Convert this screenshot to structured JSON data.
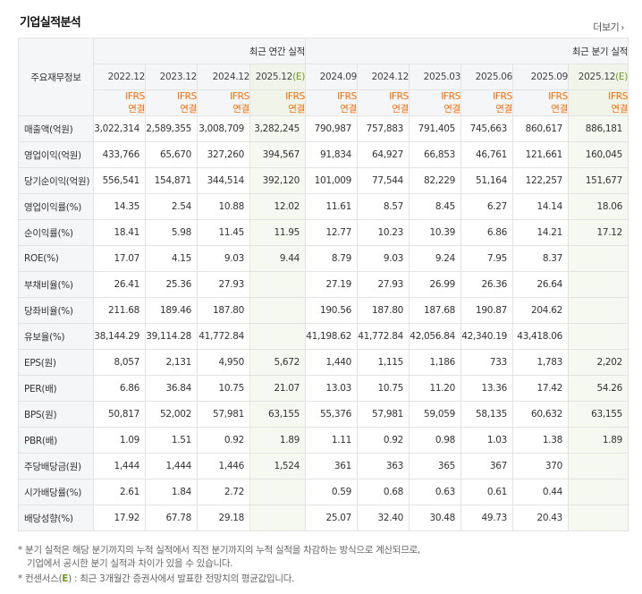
{
  "title": "기업실적분석",
  "more_label": "더보기",
  "header": {
    "label": "주요재무정보",
    "annual": "최근 연간 실적",
    "quarter": "최근 분기 실적",
    "periods": [
      {
        "text": "2022.12",
        "est": false
      },
      {
        "text": "2023.12",
        "est": false
      },
      {
        "text": "2024.12",
        "est": false
      },
      {
        "text": "2025.12(E)",
        "est": true
      },
      {
        "text": "2024.09",
        "est": false
      },
      {
        "text": "2024.12",
        "est": false
      },
      {
        "text": "2025.03",
        "est": false
      },
      {
        "text": "2025.06",
        "est": false
      },
      {
        "text": "2025.09",
        "est": false
      },
      {
        "text": "2025.12(E)",
        "est": true
      }
    ],
    "standard_1": "IFRS",
    "standard_2": "연결"
  },
  "rows": [
    {
      "label": "매출액(억원)",
      "values": [
        "3,022,314",
        "2,589,355",
        "3,008,709",
        "3,282,245",
        "790,987",
        "757,883",
        "791,405",
        "745,663",
        "860,617",
        "886,181"
      ]
    },
    {
      "label": "영업이익(억원)",
      "values": [
        "433,766",
        "65,670",
        "327,260",
        "394,567",
        "91,834",
        "64,927",
        "66,853",
        "46,761",
        "121,661",
        "160,045"
      ]
    },
    {
      "label": "당기순이익(억원)",
      "values": [
        "556,541",
        "154,871",
        "344,514",
        "392,120",
        "101,009",
        "77,544",
        "82,229",
        "51,164",
        "122,257",
        "151,677"
      ]
    },
    {
      "label": "영업이익률(%)",
      "values": [
        "14.35",
        "2.54",
        "10.88",
        "12.02",
        "11.61",
        "8.57",
        "8.45",
        "6.27",
        "14.14",
        "18.06"
      ]
    },
    {
      "label": "순이익률(%)",
      "values": [
        "18.41",
        "5.98",
        "11.45",
        "11.95",
        "12.77",
        "10.23",
        "10.39",
        "6.86",
        "14.21",
        "17.12"
      ]
    },
    {
      "label": "ROE(%)",
      "values": [
        "17.07",
        "4.15",
        "9.03",
        "9.44",
        "8.79",
        "9.03",
        "9.24",
        "7.95",
        "8.37",
        ""
      ]
    },
    {
      "label": "부채비율(%)",
      "values": [
        "26.41",
        "25.36",
        "27.93",
        "",
        "27.19",
        "27.93",
        "26.99",
        "26.36",
        "26.64",
        ""
      ]
    },
    {
      "label": "당좌비율(%)",
      "values": [
        "211.68",
        "189.46",
        "187.80",
        "",
        "190.56",
        "187.80",
        "187.68",
        "190.87",
        "204.62",
        ""
      ]
    },
    {
      "label": "유보율(%)",
      "values": [
        "38,144.29",
        "39,114.28",
        "41,772.84",
        "",
        "41,198.62",
        "41,772.84",
        "42,056.84",
        "42,340.19",
        "43,418.06",
        ""
      ]
    },
    {
      "label": "EPS(원)",
      "values": [
        "8,057",
        "2,131",
        "4,950",
        "5,672",
        "1,440",
        "1,115",
        "1,186",
        "733",
        "1,783",
        "2,202"
      ]
    },
    {
      "label": "PER(배)",
      "values": [
        "6.86",
        "36.84",
        "10.75",
        "21.07",
        "13.03",
        "10.75",
        "11.20",
        "13.36",
        "17.42",
        "54.26"
      ]
    },
    {
      "label": "BPS(원)",
      "values": [
        "50,817",
        "52,002",
        "57,981",
        "63,155",
        "55,376",
        "57,981",
        "59,059",
        "58,135",
        "60,632",
        "63,155"
      ]
    },
    {
      "label": "PBR(배)",
      "values": [
        "1.09",
        "1.51",
        "0.92",
        "1.89",
        "1.11",
        "0.92",
        "0.98",
        "1.03",
        "1.38",
        "1.89"
      ]
    },
    {
      "label": "주당배당금(원)",
      "values": [
        "1,444",
        "1,444",
        "1,446",
        "1,524",
        "361",
        "363",
        "365",
        "367",
        "370",
        ""
      ]
    },
    {
      "label": "시가배당률(%)",
      "values": [
        "2.61",
        "1.84",
        "2.72",
        "",
        "0.59",
        "0.68",
        "0.63",
        "0.61",
        "0.44",
        ""
      ]
    },
    {
      "label": "배당성향(%)",
      "values": [
        "17.92",
        "67.78",
        "29.18",
        "",
        "25.07",
        "32.40",
        "30.48",
        "49.73",
        "20.43",
        ""
      ]
    }
  ],
  "notes": {
    "line1": "분기 실적은 해당 분기까지의 누적 실적에서 직전 분기까지의 누적 실적을 차감하는 방식으로 계산되므로,",
    "line2": "기업에서 공시한 분기 실적과 차이가 있을 수 있습니다.",
    "line3_prefix": "컨센서스(",
    "line3_e": "E",
    "line3_suffix": ") : 최근 3개월간 증권사에서 발표한 전망치의 평균값입니다."
  }
}
